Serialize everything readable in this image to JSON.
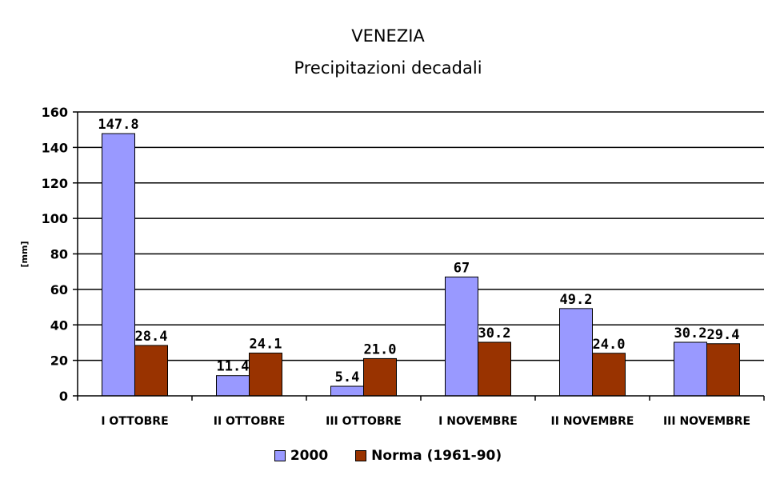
{
  "chart_data": {
    "type": "bar",
    "title": "VENEZIA",
    "subtitle": "Precipitazioni decadali",
    "ylabel": "[mm]",
    "xlabel": "",
    "ylim": [
      0,
      160
    ],
    "yticks": [
      0,
      20,
      40,
      60,
      80,
      100,
      120,
      140,
      160
    ],
    "grid": true,
    "legend_position": "bottom",
    "categories": [
      "I OTTOBRE",
      "II OTTOBRE",
      "III OTTOBRE",
      "I NOVEMBRE",
      "II NOVEMBRE",
      "III NOVEMBRE"
    ],
    "series": [
      {
        "name": "2000",
        "color": "#9999ff",
        "values": [
          147.8,
          11.4,
          5.4,
          67,
          49.2,
          30.2
        ],
        "labels": [
          "147.8",
          "11.4",
          "5.4",
          "67",
          "49.2",
          "30.2"
        ]
      },
      {
        "name": "Norma (1961-90)",
        "color": "#993300",
        "values": [
          28.4,
          24.1,
          21.0,
          30.2,
          24.0,
          29.4
        ],
        "labels": [
          "28.4",
          "24.1",
          "21.0",
          "30.2",
          "24.0",
          "29.4"
        ]
      }
    ]
  }
}
